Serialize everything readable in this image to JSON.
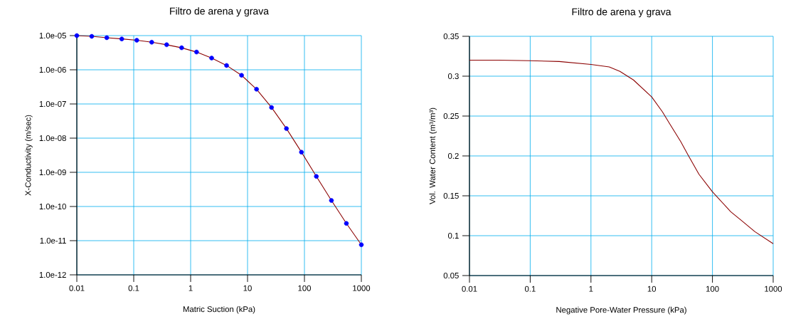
{
  "chart_data": [
    {
      "type": "line",
      "title": "Filtro de arena y grava",
      "xlabel": "Matric Suction (kPa)",
      "ylabel": "X-Conductivity (m/sec)",
      "log": "xy",
      "grid": true,
      "line_style": "solid",
      "xlim": [
        0.01,
        1000
      ],
      "xticks": [
        0.01,
        0.1,
        1,
        10,
        100,
        1000
      ],
      "ylim": [
        1e-12,
        1e-05
      ],
      "yticks": [
        {
          "value": 1e-12,
          "label": "1.0e-12"
        },
        {
          "value": 1e-11,
          "label": "1.0e-11"
        },
        {
          "value": 1e-10,
          "label": "1.0e-10"
        },
        {
          "value": 1e-09,
          "label": "1.0e-09"
        },
        {
          "value": 1e-08,
          "label": "1.0e-08"
        },
        {
          "value": 1e-07,
          "label": "1.0e-07"
        },
        {
          "value": 1e-06,
          "label": "1.0e-06"
        },
        {
          "value": 1e-05,
          "label": "1.0e-05"
        }
      ],
      "x": [
        0.01,
        0.0183,
        0.0336,
        0.0616,
        0.113,
        0.207,
        0.379,
        0.695,
        1.27,
        2.34,
        4.28,
        7.85,
        14.4,
        26.4,
        48.3,
        88.6,
        162,
        298,
        546,
        1000
      ],
      "series": [
        {
          "type": "line",
          "color": "#8b0000",
          "marker": "none",
          "values": [
            1e-05,
            9.5e-06,
            8.7e-06,
            8e-06,
            7.3e-06,
            6.4e-06,
            5.4e-06,
            4.4e-06,
            3.3e-06,
            2.2e-06,
            1.34e-06,
            6.9e-07,
            2.7e-07,
            7.9e-08,
            1.9e-08,
            3.9e-09,
            7.6e-10,
            1.5e-10,
            3.2e-11,
            7.6e-12
          ]
        },
        {
          "type": "scatter",
          "color": "#0000ff",
          "marker": "circle",
          "values": [
            1e-05,
            9.5e-06,
            8.7e-06,
            8e-06,
            7.3e-06,
            6.4e-06,
            5.4e-06,
            4.4e-06,
            3.3e-06,
            2.2e-06,
            1.34e-06,
            6.9e-07,
            2.7e-07,
            7.9e-08,
            1.9e-08,
            3.9e-09,
            7.6e-10,
            1.5e-10,
            3.2e-11,
            7.6e-12
          ]
        }
      ]
    },
    {
      "type": "line",
      "title": "Filtro de arena y grava",
      "xlabel": "Negative Pore-Water Pressure (kPa)",
      "ylabel": "Vol. Water Content (m³/m³)",
      "log": "x",
      "grid": true,
      "line_style": "solid",
      "marker": "none",
      "xlim": [
        0.01,
        1000
      ],
      "xticks": [
        0.01,
        0.1,
        1,
        10,
        100,
        1000
      ],
      "ylim": [
        0.05,
        0.35
      ],
      "yticks": [
        0.05,
        0.1,
        0.15,
        0.2,
        0.25,
        0.3,
        0.35
      ],
      "x": [
        0.01,
        0.03,
        0.1,
        0.3,
        1,
        2,
        3,
        5,
        10,
        15,
        20,
        30,
        40,
        60,
        100,
        200,
        300,
        500,
        1000
      ],
      "series": [
        {
          "color": "#8b0000",
          "values": [
            0.32,
            0.32,
            0.3194,
            0.3184,
            0.3147,
            0.3116,
            0.306,
            0.2953,
            0.274,
            0.2553,
            0.2397,
            0.218,
            0.2006,
            0.177,
            0.155,
            0.13,
            0.119,
            0.105,
            0.09
          ]
        }
      ]
    }
  ]
}
